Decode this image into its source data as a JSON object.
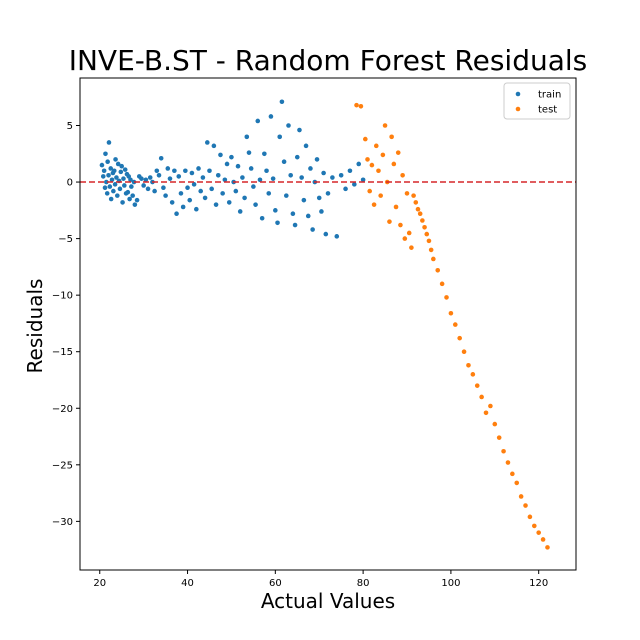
{
  "chart_data": {
    "type": "scatter",
    "title": "INVE-B.ST - Random Forest Residuals",
    "xlabel": "Actual Values",
    "ylabel": "Residuals",
    "xlim": [
      15.5,
      128.5
    ],
    "ylim": [
      -34.3,
      9.2
    ],
    "xticks": [
      20,
      40,
      60,
      80,
      100,
      120
    ],
    "yticks": [
      5,
      0,
      -5,
      -10,
      -15,
      -20,
      -25,
      -30
    ],
    "reference_line": {
      "y": 0,
      "style": "dashed",
      "color": "#d62728"
    },
    "legend_position": "top-right",
    "colors": {
      "train": "#1f77b4",
      "test": "#ff7f0e"
    },
    "series": [
      {
        "name": "train",
        "points": [
          [
            20.5,
            1.5
          ],
          [
            20.8,
            0.5
          ],
          [
            21.0,
            1.0
          ],
          [
            21.2,
            -0.5
          ],
          [
            21.3,
            2.5
          ],
          [
            21.5,
            0.0
          ],
          [
            21.7,
            -1.0
          ],
          [
            21.8,
            1.8
          ],
          [
            22.0,
            0.6
          ],
          [
            22.1,
            3.5
          ],
          [
            22.3,
            -0.4
          ],
          [
            22.5,
            1.2
          ],
          [
            22.6,
            -1.5
          ],
          [
            22.8,
            0.2
          ],
          [
            23.0,
            0.8
          ],
          [
            23.1,
            -0.8
          ],
          [
            23.3,
            1.0
          ],
          [
            23.5,
            -0.2
          ],
          [
            23.6,
            2.0
          ],
          [
            23.8,
            0.4
          ],
          [
            24.0,
            -1.2
          ],
          [
            24.2,
            1.6
          ],
          [
            24.4,
            0.1
          ],
          [
            24.6,
            -0.6
          ],
          [
            24.8,
            0.9
          ],
          [
            25.0,
            1.4
          ],
          [
            25.2,
            -1.8
          ],
          [
            25.4,
            0.3
          ],
          [
            25.6,
            -0.3
          ],
          [
            25.8,
            1.1
          ],
          [
            26.0,
            -1.0
          ],
          [
            26.2,
            0.7
          ],
          [
            26.4,
            -0.9
          ],
          [
            26.6,
            0.5
          ],
          [
            26.8,
            -1.5
          ],
          [
            27.0,
            0.2
          ],
          [
            27.2,
            -0.4
          ],
          [
            27.5,
            -1.2
          ],
          [
            27.8,
            0.0
          ],
          [
            28.0,
            -2.0
          ],
          [
            28.5,
            -1.6
          ],
          [
            29.0,
            0.5
          ],
          [
            29.5,
            0.3
          ],
          [
            30.0,
            -0.3
          ],
          [
            30.5,
            0.2
          ],
          [
            31.0,
            -0.6
          ],
          [
            31.5,
            0.4
          ],
          [
            32.0,
            0.0
          ],
          [
            32.5,
            -0.8
          ],
          [
            33.0,
            1.0
          ],
          [
            33.5,
            0.6
          ],
          [
            34.0,
            2.1
          ],
          [
            34.5,
            -0.5
          ],
          [
            35.0,
            -1.2
          ],
          [
            35.5,
            1.2
          ],
          [
            36.0,
            0.3
          ],
          [
            36.5,
            -1.8
          ],
          [
            37.0,
            1.0
          ],
          [
            37.5,
            -2.8
          ],
          [
            38.0,
            0.5
          ],
          [
            38.5,
            -1.0
          ],
          [
            39.0,
            -2.2
          ],
          [
            39.5,
            1.0
          ],
          [
            40.0,
            -0.5
          ],
          [
            40.5,
            -1.6
          ],
          [
            41.0,
            0.8
          ],
          [
            41.5,
            -0.2
          ],
          [
            42.0,
            -2.4
          ],
          [
            42.5,
            1.2
          ],
          [
            43.0,
            -0.8
          ],
          [
            43.5,
            0.4
          ],
          [
            44.0,
            -1.4
          ],
          [
            44.5,
            3.5
          ],
          [
            45.0,
            1.0
          ],
          [
            45.5,
            -0.6
          ],
          [
            46.0,
            3.2
          ],
          [
            46.5,
            -2.0
          ],
          [
            47.0,
            0.6
          ],
          [
            47.5,
            2.4
          ],
          [
            48.0,
            -1.0
          ],
          [
            48.5,
            0.2
          ],
          [
            49.0,
            1.6
          ],
          [
            49.5,
            -1.8
          ],
          [
            50.0,
            2.2
          ],
          [
            50.5,
            0.0
          ],
          [
            51.0,
            -0.8
          ],
          [
            51.5,
            1.4
          ],
          [
            52.0,
            -2.6
          ],
          [
            52.5,
            0.4
          ],
          [
            53.0,
            -1.4
          ],
          [
            53.5,
            4.0
          ],
          [
            54.0,
            2.6
          ],
          [
            54.5,
            1.2
          ],
          [
            55.0,
            -0.4
          ],
          [
            55.5,
            -2.0
          ],
          [
            56.0,
            5.4
          ],
          [
            56.5,
            0.2
          ],
          [
            57.0,
            -3.2
          ],
          [
            57.5,
            2.5
          ],
          [
            58.0,
            1.0
          ],
          [
            58.5,
            -1.0
          ],
          [
            59.0,
            5.8
          ],
          [
            59.5,
            0.3
          ],
          [
            60.0,
            -2.5
          ],
          [
            60.5,
            -3.6
          ],
          [
            61.0,
            4.0
          ],
          [
            61.5,
            7.1
          ],
          [
            62.0,
            1.8
          ],
          [
            62.5,
            -1.2
          ],
          [
            63.0,
            5.0
          ],
          [
            63.5,
            0.6
          ],
          [
            64.0,
            -2.8
          ],
          [
            64.5,
            -3.8
          ],
          [
            65.0,
            2.2
          ],
          [
            65.5,
            4.6
          ],
          [
            66.0,
            0.4
          ],
          [
            66.5,
            -1.6
          ],
          [
            67.0,
            3.2
          ],
          [
            67.5,
            -3.0
          ],
          [
            68.0,
            1.2
          ],
          [
            68.5,
            -4.2
          ],
          [
            69.0,
            0.0
          ],
          [
            69.5,
            2.0
          ],
          [
            70.0,
            -1.4
          ],
          [
            70.5,
            -2.6
          ],
          [
            71.0,
            0.8
          ],
          [
            71.5,
            -4.6
          ],
          [
            72.0,
            -1.0
          ],
          [
            73.0,
            0.4
          ],
          [
            74.0,
            -4.8
          ],
          [
            75.0,
            0.6
          ],
          [
            76.0,
            -0.6
          ],
          [
            77.0,
            1.0
          ],
          [
            78.0,
            -0.2
          ],
          [
            79.0,
            1.6
          ],
          [
            80.0,
            0.2
          ]
        ]
      },
      {
        "name": "test",
        "points": [
          [
            78.5,
            6.8
          ],
          [
            79.5,
            6.7
          ],
          [
            80.5,
            3.8
          ],
          [
            81.0,
            2.0
          ],
          [
            81.5,
            -0.8
          ],
          [
            82.0,
            1.5
          ],
          [
            82.5,
            -2.0
          ],
          [
            83.0,
            3.2
          ],
          [
            83.5,
            1.0
          ],
          [
            84.0,
            -1.2
          ],
          [
            84.5,
            2.4
          ],
          [
            85.0,
            5.0
          ],
          [
            85.5,
            0.0
          ],
          [
            86.0,
            -3.5
          ],
          [
            86.5,
            4.0
          ],
          [
            87.0,
            1.6
          ],
          [
            87.5,
            -2.2
          ],
          [
            88.0,
            2.6
          ],
          [
            88.5,
            -3.8
          ],
          [
            89.0,
            0.6
          ],
          [
            89.5,
            -5.0
          ],
          [
            90.0,
            -1.0
          ],
          [
            90.5,
            -4.5
          ],
          [
            91.0,
            -5.8
          ],
          [
            91.5,
            -1.2
          ],
          [
            92.0,
            -1.8
          ],
          [
            92.5,
            -2.4
          ],
          [
            93.0,
            -2.8
          ],
          [
            93.5,
            -3.4
          ],
          [
            94.0,
            -4.0
          ],
          [
            94.5,
            -4.6
          ],
          [
            95.0,
            -5.2
          ],
          [
            95.5,
            -6.0
          ],
          [
            96.0,
            -6.8
          ],
          [
            97.0,
            -7.8
          ],
          [
            98.0,
            -9.0
          ],
          [
            99.0,
            -10.2
          ],
          [
            100.0,
            -11.6
          ],
          [
            101.0,
            -12.6
          ],
          [
            102.0,
            -13.8
          ],
          [
            103.0,
            -15.0
          ],
          [
            104.0,
            -16.2
          ],
          [
            105.0,
            -17.0
          ],
          [
            106.0,
            -18.0
          ],
          [
            107.0,
            -19.0
          ],
          [
            108.0,
            -20.4
          ],
          [
            109.0,
            -19.8
          ],
          [
            110.0,
            -21.4
          ],
          [
            111.0,
            -22.6
          ],
          [
            112.0,
            -23.8
          ],
          [
            113.0,
            -24.8
          ],
          [
            114.0,
            -25.8
          ],
          [
            115.0,
            -26.6
          ],
          [
            116.0,
            -27.8
          ],
          [
            117.0,
            -28.6
          ],
          [
            118.0,
            -29.6
          ],
          [
            119.0,
            -30.4
          ],
          [
            120.0,
            -31.0
          ],
          [
            121.0,
            -31.6
          ],
          [
            122.0,
            -32.3
          ]
        ]
      }
    ]
  }
}
